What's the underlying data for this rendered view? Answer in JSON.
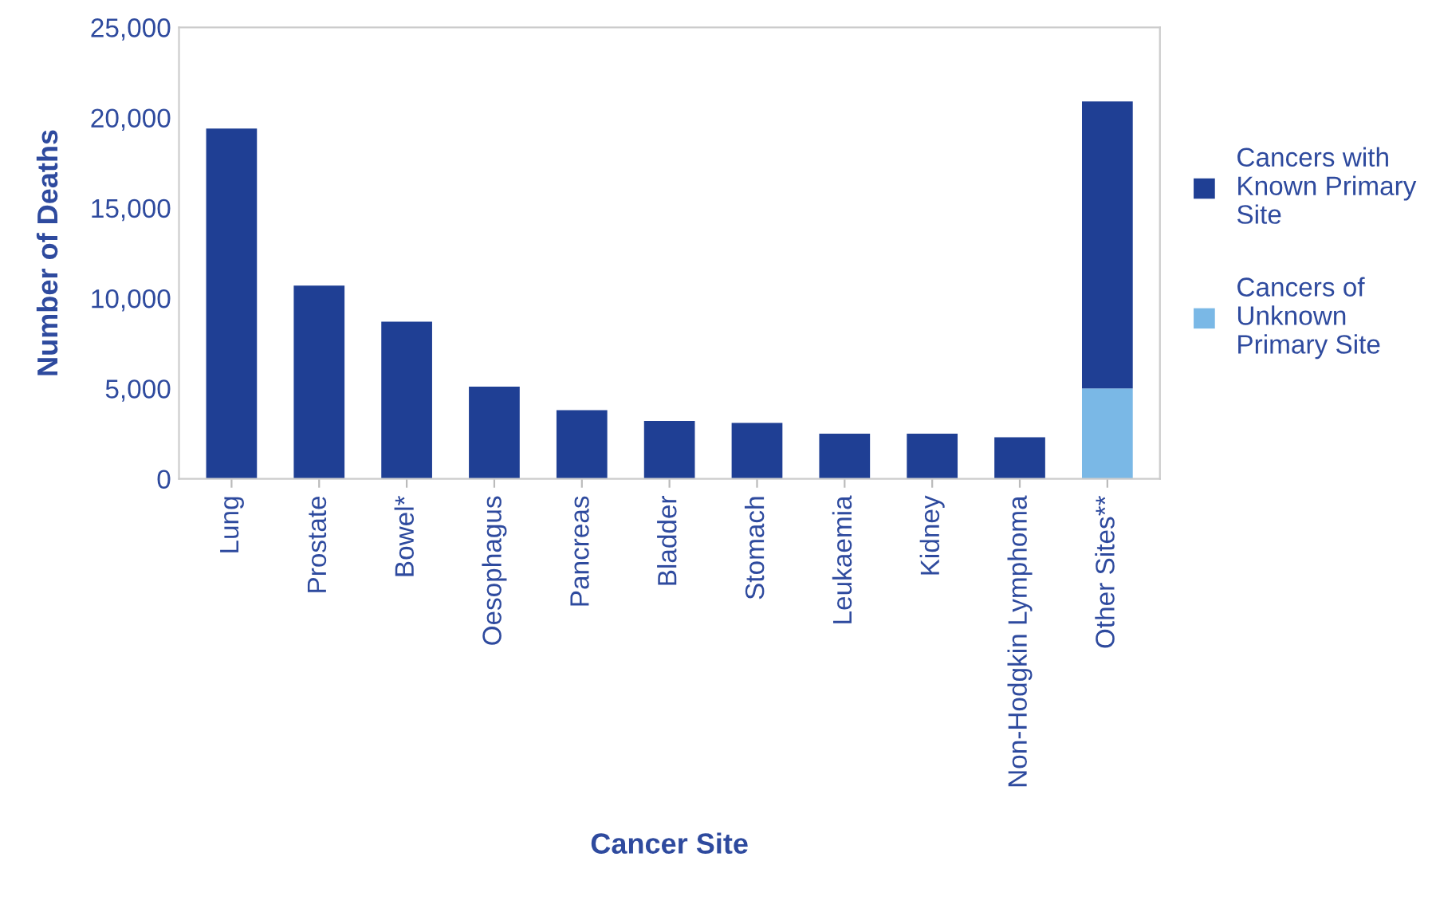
{
  "chart_data": {
    "type": "bar",
    "stacked": true,
    "xlabel": "Cancer Site",
    "ylabel": "Number of Deaths",
    "categories": [
      "Lung",
      "Prostate",
      "Bowel*",
      "Oesophagus",
      "Pancreas",
      "Bladder",
      "Stomach",
      "Leukaemia",
      "Kidney",
      "Non-Hodgkin Lymphoma",
      "Other Sites**"
    ],
    "series": [
      {
        "name": "Cancers of\nUnknown\nPrimary Site",
        "color": "#7ab8e6",
        "values": [
          null,
          null,
          null,
          null,
          null,
          null,
          null,
          null,
          null,
          null,
          5000
        ]
      },
      {
        "name": "Cancers with\nKnown Primary\nSite",
        "color": "#1f3f94",
        "values": [
          19400,
          10700,
          8700,
          5100,
          3800,
          3200,
          3100,
          2500,
          2500,
          2300,
          15900
        ]
      }
    ],
    "ylim": [
      0,
      25000
    ],
    "yticks": [
      {
        "value": 0,
        "label": "0"
      },
      {
        "value": 5000,
        "label": "5,000"
      },
      {
        "value": 10000,
        "label": "10,000"
      },
      {
        "value": 15000,
        "label": "15,000"
      },
      {
        "value": 20000,
        "label": "20,000"
      },
      {
        "value": 25000,
        "label": "25,000"
      }
    ],
    "grid": false,
    "legend": "right"
  }
}
